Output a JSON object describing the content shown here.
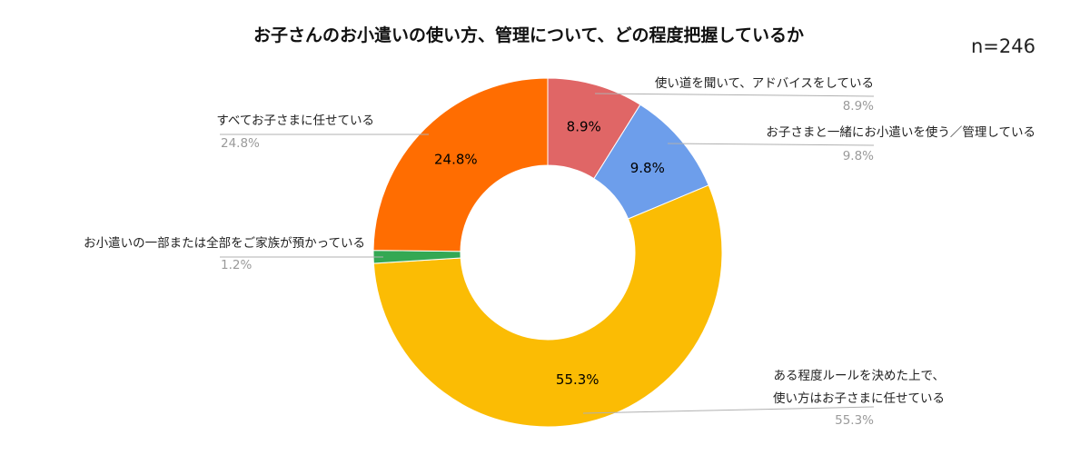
{
  "chart_data": {
    "type": "pie",
    "title": "お子さんのお小遣いの使い方、管理について、どの程度把握しているか",
    "sample_size": "n=246",
    "donut": true,
    "start_angle_deg": 0,
    "slices": [
      {
        "name": "使い道を聞いて、アドバイスをしている",
        "value": 8.9,
        "label": "8.9%",
        "color": "#E06666"
      },
      {
        "name": "お子さまと一緒にお小遣いを使う／管理している",
        "value": 9.8,
        "label": "9.8%",
        "color": "#6D9EEB"
      },
      {
        "name_lines": [
          "ある程度ルールを決めた上で、",
          "使い方はお子さまに任せている"
        ],
        "value": 55.3,
        "label": "55.3%",
        "color": "#FBBC04"
      },
      {
        "name": "お小遣いの一部または全部をご家族が預かっている",
        "value": 1.2,
        "label": "1.2%",
        "color": "#34A853"
      },
      {
        "name": "すべてお子さまに任せている",
        "value": 24.8,
        "label": "24.8%",
        "color": "#FF6D01"
      }
    ]
  }
}
